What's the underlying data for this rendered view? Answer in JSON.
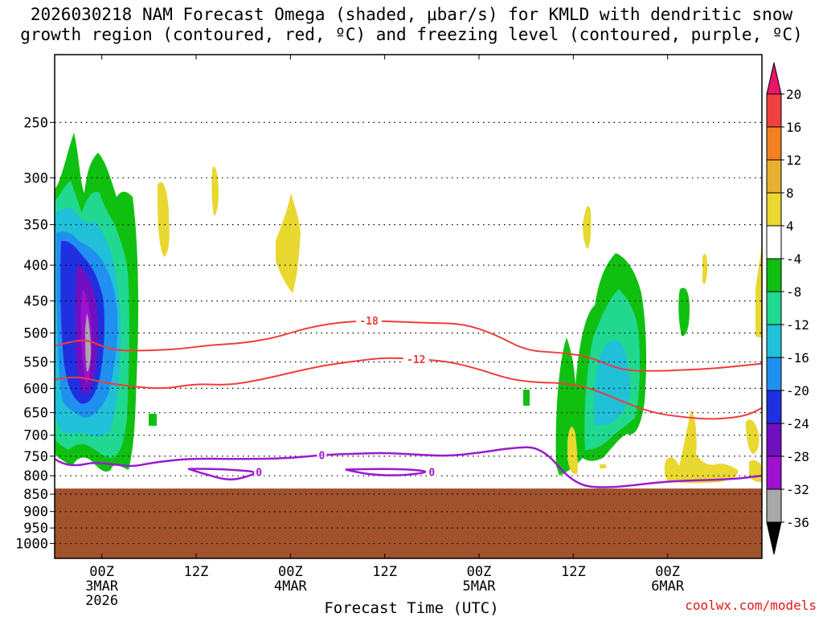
{
  "chart_data": {
    "type": "heatmap",
    "title_line1": "2026030218 NAM Forecast Omega (shaded, μbar/s) for KMLD with dendritic snow",
    "title_line2": "growth region (contoured, red, ºC) and freezing level (contoured, purple, ºC)",
    "xlabel": "Forecast Time (UTC)",
    "ylabel": "",
    "y_axis": {
      "unit": "hPa",
      "scale": "log-pressure",
      "range": [
        1050,
        200
      ],
      "ticks": [
        250,
        300,
        350,
        400,
        450,
        500,
        550,
        600,
        650,
        700,
        750,
        800,
        850,
        900,
        950,
        1000
      ]
    },
    "x_axis": {
      "range_hours": [
        -6,
        84
      ],
      "ticks": [
        {
          "hour": 0,
          "label": "00Z",
          "date": "3MAR",
          "year": "2026"
        },
        {
          "hour": 12,
          "label": "12Z",
          "date": "",
          "year": ""
        },
        {
          "hour": 24,
          "label": "00Z",
          "date": "4MAR",
          "year": ""
        },
        {
          "hour": 36,
          "label": "12Z",
          "date": "",
          "year": ""
        },
        {
          "hour": 48,
          "label": "00Z",
          "date": "5MAR",
          "year": ""
        },
        {
          "hour": 60,
          "label": "12Z",
          "date": "",
          "year": ""
        },
        {
          "hour": 72,
          "label": "00Z",
          "date": "6MAR",
          "year": ""
        }
      ]
    },
    "colorbar": {
      "levels": [
        20,
        16,
        12,
        8,
        4,
        -4,
        -8,
        -12,
        -16,
        -20,
        -24,
        -28,
        -32,
        -36
      ],
      "colors": [
        "#e8156b",
        "#f04040",
        "#f08020",
        "#e8b030",
        "#e8d830",
        "#ffffff",
        "#10c010",
        "#20d890",
        "#20c0d8",
        "#2090f0",
        "#2030e0",
        "#7010c0",
        "#a010d0",
        "#a8a8a8",
        "#000000"
      ]
    },
    "ground_pressure_hpa": 830,
    "dgz_contours": [
      {
        "value": -18,
        "label": "-18",
        "points": [
          [
            -7,
            525
          ],
          [
            -4,
            515
          ],
          [
            -2,
            511
          ],
          [
            0,
            522
          ],
          [
            2,
            530
          ],
          [
            6,
            530
          ],
          [
            10,
            527
          ],
          [
            14,
            520
          ],
          [
            18,
            517
          ],
          [
            22,
            508
          ],
          [
            26,
            492
          ],
          [
            30,
            483
          ],
          [
            34,
            480
          ],
          [
            38,
            482
          ],
          [
            42,
            484
          ],
          [
            46,
            485
          ],
          [
            50,
            502
          ],
          [
            54,
            530
          ],
          [
            58,
            533
          ],
          [
            62,
            540
          ],
          [
            66,
            565
          ],
          [
            70,
            567
          ],
          [
            74,
            565
          ],
          [
            78,
            562
          ],
          [
            84,
            553
          ]
        ]
      },
      {
        "value": -12,
        "label": "-12",
        "points": [
          [
            -7,
            585
          ],
          [
            -4,
            578
          ],
          [
            -2,
            580
          ],
          [
            0,
            588
          ],
          [
            4,
            597
          ],
          [
            8,
            601
          ],
          [
            12,
            591
          ],
          [
            16,
            594
          ],
          [
            20,
            584
          ],
          [
            24,
            570
          ],
          [
            28,
            557
          ],
          [
            32,
            549
          ],
          [
            36,
            542
          ],
          [
            40,
            545
          ],
          [
            44,
            549
          ],
          [
            48,
            563
          ],
          [
            52,
            583
          ],
          [
            56,
            589
          ],
          [
            58,
            589
          ],
          [
            62,
            598
          ],
          [
            66,
            625
          ],
          [
            70,
            650
          ],
          [
            74,
            660
          ],
          [
            78,
            665
          ],
          [
            82,
            657
          ],
          [
            84,
            640
          ]
        ]
      }
    ],
    "freezing_level_contours": [
      {
        "value": 0,
        "label": "0",
        "points": [
          [
            -7,
            744
          ],
          [
            -5,
            770
          ],
          [
            -3,
            774
          ],
          [
            -1,
            765
          ],
          [
            2,
            772
          ],
          [
            4,
            776
          ],
          [
            6,
            768
          ],
          [
            9,
            760
          ],
          [
            12,
            756
          ],
          [
            16,
            757
          ],
          [
            20,
            757
          ],
          [
            24,
            755
          ],
          [
            28,
            747
          ],
          [
            32,
            744
          ],
          [
            36,
            742
          ],
          [
            40,
            746
          ],
          [
            44,
            750
          ],
          [
            48,
            742
          ],
          [
            52,
            730
          ],
          [
            56,
            727
          ],
          [
            60,
            822
          ],
          [
            64,
            835
          ],
          [
            72,
            814
          ],
          [
            80,
            810
          ],
          [
            84,
            800
          ]
        ]
      },
      {
        "value": 0,
        "label": "0",
        "points": [
          [
            11,
            782
          ],
          [
            13,
            795
          ],
          [
            16,
            812
          ],
          [
            18,
            806
          ],
          [
            20,
            790
          ],
          [
            17,
            785
          ],
          [
            14,
            782
          ],
          [
            11,
            782
          ]
        ]
      },
      {
        "value": 0,
        "label": "0",
        "points": [
          [
            31,
            784
          ],
          [
            34,
            797
          ],
          [
            38,
            800
          ],
          [
            42,
            790
          ],
          [
            39,
            783
          ],
          [
            35,
            782
          ],
          [
            31,
            784
          ]
        ]
      }
    ],
    "omega_regions": [
      {
        "value_range": [
          -12,
          -8
        ],
        "time_hours": [
          -6,
          4
        ],
        "pressure_hpa": [
          780,
          265
        ]
      },
      {
        "value_range": [
          -16,
          -12
        ],
        "time_hours": [
          -6,
          3
        ],
        "pressure_hpa": [
          740,
          300
        ]
      },
      {
        "value_range": [
          -20,
          -16
        ],
        "time_hours": [
          -5,
          2
        ],
        "pressure_hpa": [
          680,
          350
        ]
      },
      {
        "value_range": [
          -24,
          -20
        ],
        "time_hours": [
          -5,
          2
        ],
        "pressure_hpa": [
          650,
          380
        ]
      },
      {
        "value_range": [
          -28,
          -24
        ],
        "time_hours": [
          -3,
          0
        ],
        "pressure_hpa": [
          630,
          430
        ]
      },
      {
        "value_range": [
          -36,
          -32
        ],
        "time_hours": [
          -2,
          -1
        ],
        "pressure_hpa": [
          570,
          480
        ]
      },
      {
        "value_range": [
          -12,
          -8
        ],
        "time_hours": [
          59,
          65
        ],
        "pressure_hpa": [
          750,
          390
        ]
      },
      {
        "value_range": [
          -16,
          -12
        ],
        "time_hours": [
          60,
          64
        ],
        "pressure_hpa": [
          690,
          440
        ]
      },
      {
        "value_range": [
          4,
          8
        ],
        "time_hours": [
          6,
          8
        ],
        "pressure_hpa": [
          390,
          320
        ]
      },
      {
        "value_range": [
          4,
          8
        ],
        "time_hours": [
          20,
          24
        ],
        "pressure_hpa": [
          450,
          340
        ]
      },
      {
        "value_range": [
          4,
          8
        ],
        "time_hours": [
          71,
          76
        ],
        "pressure_hpa": [
          810,
          740
        ]
      }
    ]
  },
  "watermark": "coolwx.com/models"
}
